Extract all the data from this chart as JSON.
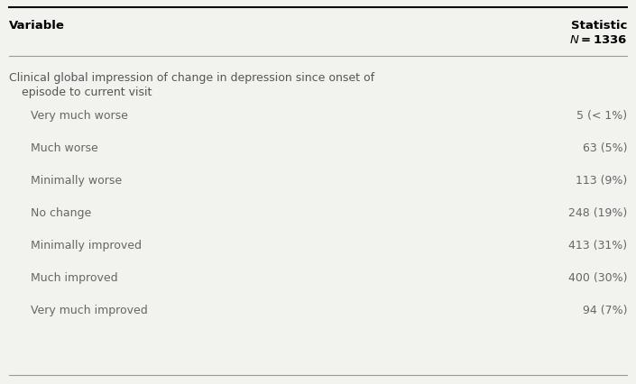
{
  "header_col1": "Variable",
  "header_col2_line1": "Statistic",
  "header_col2_line2": "$\\mathbf{\\mathit{N}}\\mathbf{= 1336}$",
  "section_line1": "Clinical global impression of change in depression since onset of",
  "section_line2": "  episode to current visit",
  "rows": [
    {
      "label": "Very much worse",
      "value": "5 (< 1%)"
    },
    {
      "label": "Much worse",
      "value": "63 (5%)"
    },
    {
      "label": "Minimally worse",
      "value": "113 (9%)"
    },
    {
      "label": "No change",
      "value": "248 (19%)"
    },
    {
      "label": "Minimally improved",
      "value": "413 (31%)"
    },
    {
      "label": "Much improved",
      "value": "400 (30%)"
    },
    {
      "label": "Very much improved",
      "value": "94 (7%)"
    }
  ],
  "bg_color": "#f2f2ee",
  "text_color": "#4a4a4a",
  "row_text_color": "#666666",
  "section_text_color": "#555555",
  "font_size": 9.0,
  "header_font_size": 9.5,
  "fig_width": 7.05,
  "fig_height": 4.26,
  "dpi": 100
}
